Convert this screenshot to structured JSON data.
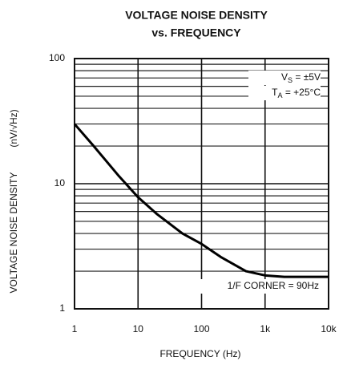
{
  "chart_data": {
    "type": "line",
    "title": "VOLTAGE NOISE DENSITY",
    "subtitle": "vs. FREQUENCY",
    "x_label": "FREQUENCY (Hz)",
    "y_label": "VOLTAGE NOISE DENSITY",
    "y_unit": "(nV/√Hz)",
    "annotations": [
      {
        "main": "V",
        "sub": "S",
        "tail": " = ±5V"
      },
      {
        "main": "T",
        "sub": "A",
        "tail": " = +25°C"
      },
      {
        "main": "1/F CORNER = 90Hz"
      }
    ],
    "x": [
      1,
      2,
      5,
      10,
      20,
      50,
      100,
      200,
      500,
      1000,
      2000,
      5000,
      10000
    ],
    "series": [
      {
        "name": "noise",
        "color": "#000000",
        "values": [
          30,
          20,
          11.5,
          7.8,
          5.7,
          4.0,
          3.3,
          2.6,
          2.0,
          1.85,
          1.8,
          1.8,
          1.8
        ]
      }
    ],
    "xlim": [
      1,
      10000
    ],
    "ylim": [
      1,
      100
    ],
    "xticks": [
      1,
      10,
      100,
      {
        "value": 1000,
        "label": "1k"
      },
      {
        "value": 10000,
        "label": "10k"
      }
    ],
    "yticks": [
      1,
      10,
      100
    ],
    "xscale": "log",
    "yscale": "log",
    "grid": true,
    "minor_grid": "y"
  }
}
